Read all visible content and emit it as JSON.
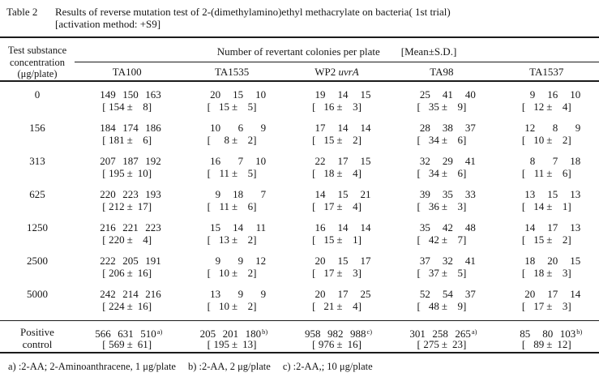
{
  "page": {
    "title_label": "Table 2",
    "title_line1": "Results of reverse mutation test of 2-(dimethylamino)ethyl methacrylate on bacteria( 1st trial)",
    "title_line2": "[activation method: +S9]"
  },
  "table": {
    "stub_header": {
      "line1": "Test substance",
      "line2": "concentration",
      "line3": "(μg/plate)"
    },
    "group_header": {
      "main": "Number of revertant colonies per plate",
      "bracket": "[Mean±S.D.]"
    },
    "strains": [
      {
        "text": "TA100",
        "italic": ""
      },
      {
        "text": "TA1535",
        "italic": ""
      },
      {
        "text": "WP2 ",
        "italic": "uvrA"
      },
      {
        "text": "TA98",
        "italic": ""
      },
      {
        "text": "TA1537",
        "italic": ""
      }
    ],
    "rows": [
      {
        "dose": [
          "0"
        ],
        "cells": [
          {
            "values": [
              149,
              150,
              163
            ],
            "mean": 154,
            "sd": 8
          },
          {
            "values": [
              20,
              15,
              10
            ],
            "mean": 15,
            "sd": 5
          },
          {
            "values": [
              19,
              14,
              15
            ],
            "mean": 16,
            "sd": 3
          },
          {
            "values": [
              25,
              41,
              40
            ],
            "mean": 35,
            "sd": 9
          },
          {
            "values": [
              9,
              16,
              10
            ],
            "mean": 12,
            "sd": 4
          }
        ]
      },
      {
        "dose": [
          "156"
        ],
        "cells": [
          {
            "values": [
              184,
              174,
              186
            ],
            "mean": 181,
            "sd": 6
          },
          {
            "values": [
              10,
              6,
              9
            ],
            "mean": 8,
            "sd": 2
          },
          {
            "values": [
              17,
              14,
              14
            ],
            "mean": 15,
            "sd": 2
          },
          {
            "values": [
              28,
              38,
              37
            ],
            "mean": 34,
            "sd": 6
          },
          {
            "values": [
              12,
              8,
              9
            ],
            "mean": 10,
            "sd": 2
          }
        ]
      },
      {
        "dose": [
          "313"
        ],
        "cells": [
          {
            "values": [
              207,
              187,
              192
            ],
            "mean": 195,
            "sd": 10
          },
          {
            "values": [
              16,
              7,
              10
            ],
            "mean": 11,
            "sd": 5
          },
          {
            "values": [
              22,
              17,
              15
            ],
            "mean": 18,
            "sd": 4
          },
          {
            "values": [
              32,
              29,
              41
            ],
            "mean": 34,
            "sd": 6
          },
          {
            "values": [
              8,
              7,
              18
            ],
            "mean": 11,
            "sd": 6
          }
        ]
      },
      {
        "dose": [
          "625"
        ],
        "cells": [
          {
            "values": [
              220,
              223,
              193
            ],
            "mean": 212,
            "sd": 17
          },
          {
            "values": [
              9,
              18,
              7
            ],
            "mean": 11,
            "sd": 6
          },
          {
            "values": [
              14,
              15,
              21
            ],
            "mean": 17,
            "sd": 4
          },
          {
            "values": [
              39,
              35,
              33
            ],
            "mean": 36,
            "sd": 3
          },
          {
            "values": [
              13,
              15,
              13
            ],
            "mean": 14,
            "sd": 1
          }
        ]
      },
      {
        "dose": [
          "1250"
        ],
        "cells": [
          {
            "values": [
              216,
              221,
              223
            ],
            "mean": 220,
            "sd": 4
          },
          {
            "values": [
              15,
              14,
              11
            ],
            "mean": 13,
            "sd": 2
          },
          {
            "values": [
              16,
              14,
              14
            ],
            "mean": 15,
            "sd": 1
          },
          {
            "values": [
              35,
              42,
              48
            ],
            "mean": 42,
            "sd": 7
          },
          {
            "values": [
              14,
              17,
              13
            ],
            "mean": 15,
            "sd": 2
          }
        ]
      },
      {
        "dose": [
          "2500"
        ],
        "cells": [
          {
            "values": [
              222,
              205,
              191
            ],
            "mean": 206,
            "sd": 16
          },
          {
            "values": [
              9,
              9,
              12
            ],
            "mean": 10,
            "sd": 2
          },
          {
            "values": [
              20,
              15,
              17
            ],
            "mean": 17,
            "sd": 3
          },
          {
            "values": [
              37,
              32,
              41
            ],
            "mean": 37,
            "sd": 5
          },
          {
            "values": [
              18,
              20,
              15
            ],
            "mean": 18,
            "sd": 3
          }
        ]
      },
      {
        "dose": [
          "5000"
        ],
        "cells": [
          {
            "values": [
              242,
              214,
              216
            ],
            "mean": 224,
            "sd": 16
          },
          {
            "values": [
              13,
              9,
              9
            ],
            "mean": 10,
            "sd": 2
          },
          {
            "values": [
              20,
              17,
              25
            ],
            "mean": 21,
            "sd": 4
          },
          {
            "values": [
              52,
              54,
              37
            ],
            "mean": 48,
            "sd": 9
          },
          {
            "values": [
              20,
              17,
              14
            ],
            "mean": 17,
            "sd": 3
          }
        ]
      },
      {
        "dose": [
          "Positive",
          "control"
        ],
        "separator_above": true,
        "cells": [
          {
            "values": [
              566,
              631,
              510
            ],
            "sup": "a)",
            "mean": 569,
            "sd": 61
          },
          {
            "values": [
              205,
              201,
              180
            ],
            "sup": "b)",
            "mean": 195,
            "sd": 13
          },
          {
            "values": [
              958,
              982,
              988
            ],
            "sup": "c)",
            "mean": 976,
            "sd": 16
          },
          {
            "values": [
              301,
              258,
              265
            ],
            "sup": "a)",
            "mean": 275,
            "sd": 23
          },
          {
            "values": [
              85,
              80,
              103
            ],
            "sup": "b)",
            "mean": 89,
            "sd": 12
          }
        ]
      }
    ]
  },
  "footnotes": [
    "a) :2-AA; 2-Aminoanthracene, 1 μg/plate",
    "b) :2-AA, 2 μg/plate",
    "c) :2-AA,;  10 μg/plate"
  ]
}
